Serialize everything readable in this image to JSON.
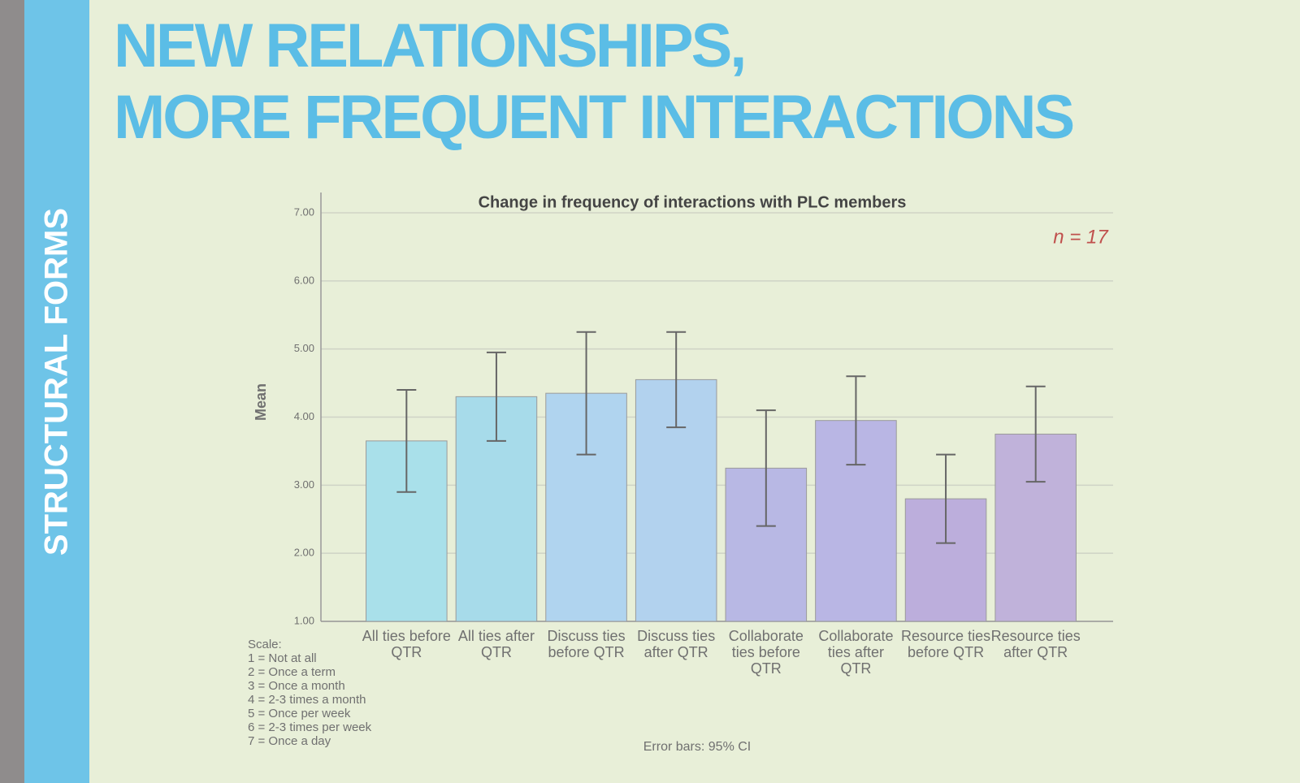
{
  "slide": {
    "side_label": "STRUCTURAL FORMS",
    "title": [
      "NEW RELATIONSHIPS,",
      "MORE FREQUENT INTERACTIONS"
    ]
  },
  "chart_data": {
    "type": "bar",
    "title": "Change in frequency of interactions with PLC members",
    "annotation": "n = 17",
    "y_label": "Mean",
    "categories": [
      "All ties before QTR",
      "All ties after QTR",
      "Discuss ties before QTR",
      "Discuss ties after QTR",
      "Collaborate ties before QTR",
      "Collaborate ties after QTR",
      "Resource ties before QTR",
      "Resource ties after QTR"
    ],
    "values": [
      3.65,
      4.3,
      4.35,
      4.55,
      3.25,
      3.95,
      2.8,
      3.75
    ],
    "errors": [
      0.75,
      0.65,
      0.9,
      0.7,
      0.85,
      0.65,
      0.65,
      0.7
    ],
    "colors": [
      "#a9e0ea",
      "#a7dbea",
      "#b0d4ef",
      "#b2d2ee",
      "#b8b8e4",
      "#b9b6e4",
      "#bcaedc",
      "#c0b2da"
    ],
    "ylim": [
      1,
      7
    ],
    "yticks": [
      {
        "value": 1,
        "label": "1.00"
      },
      {
        "value": 2,
        "label": "2.00"
      },
      {
        "value": 3,
        "label": "3.00"
      },
      {
        "value": 4,
        "label": "4.00"
      },
      {
        "value": 5,
        "label": "5.00"
      },
      {
        "value": 6,
        "label": "6.00"
      },
      {
        "value": 7,
        "label": "7.00"
      }
    ],
    "grid": true,
    "scale_title": "Scale:",
    "scale": [
      "1 = Not at all",
      "2 = Once a term",
      "3 = Once a month",
      "4 = 2-3 times a month",
      "5 = Once per week",
      "6 = 2-3 times per week",
      "7 = Once a day"
    ],
    "footnote": "Error bars: 95% CI"
  }
}
